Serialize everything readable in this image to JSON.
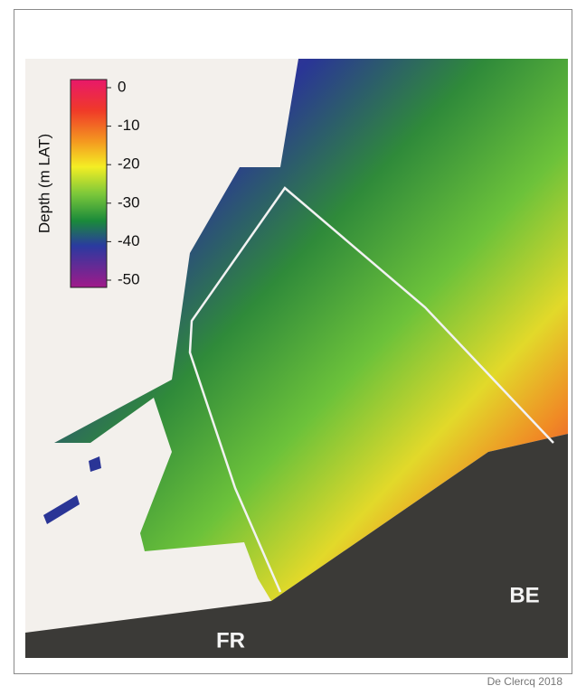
{
  "legend": {
    "title": "Depth (m LAT)",
    "lim": [
      -50,
      0
    ],
    "ticks": [
      0,
      -10,
      -20,
      -30,
      -40,
      -50
    ]
  },
  "labels": {
    "france": "FR",
    "belgium": "BE"
  },
  "credit": "De Clercq 2018"
}
